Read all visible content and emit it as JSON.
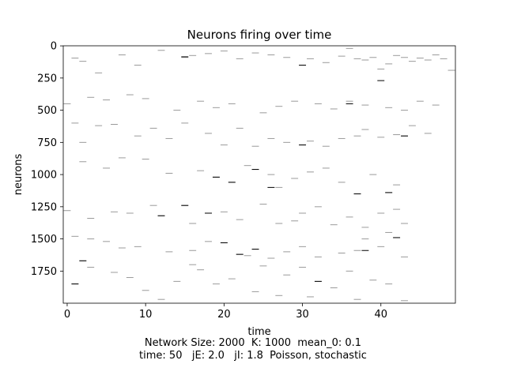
{
  "chart_data": {
    "type": "raster",
    "title": "Neurons firing over time",
    "xlabel": "time",
    "ylabel": "neurons",
    "xlim": [
      -0.5,
      49.5
    ],
    "ylim": [
      1999.5,
      -0.5
    ],
    "y_inverted": true,
    "xticks": [
      0,
      10,
      20,
      30,
      40
    ],
    "yticks": [
      0,
      250,
      500,
      750,
      1000,
      1250,
      1500,
      1750
    ],
    "grid": false,
    "colors": {
      "background": "#ffffff",
      "spike_light": "#9a9a9a",
      "spike_dark": "#000000"
    },
    "network_size": 2000,
    "time_steps": 50,
    "spikes": [
      [
        1,
        95
      ],
      [
        2,
        120
      ],
      [
        4,
        210
      ],
      [
        7,
        70
      ],
      [
        9,
        150
      ],
      [
        12,
        35
      ],
      [
        15,
        90
      ],
      [
        16,
        75
      ],
      [
        18,
        60
      ],
      [
        20,
        40
      ],
      [
        22,
        100
      ],
      [
        24,
        55
      ],
      [
        26,
        70
      ],
      [
        28,
        90
      ],
      [
        30,
        150
      ],
      [
        31,
        100
      ],
      [
        33,
        130
      ],
      [
        35,
        80
      ],
      [
        36,
        20
      ],
      [
        37,
        100
      ],
      [
        38,
        110
      ],
      [
        39,
        90
      ],
      [
        40,
        180
      ],
      [
        41,
        140
      ],
      [
        42,
        75
      ],
      [
        43,
        90
      ],
      [
        44,
        120
      ],
      [
        45,
        95
      ],
      [
        46,
        110
      ],
      [
        47,
        70
      ],
      [
        48,
        100
      ],
      [
        49,
        190
      ],
      [
        0,
        450
      ],
      [
        3,
        400
      ],
      [
        5,
        420
      ],
      [
        8,
        380
      ],
      [
        10,
        410
      ],
      [
        14,
        500
      ],
      [
        17,
        430
      ],
      [
        19,
        480
      ],
      [
        21,
        450
      ],
      [
        25,
        520
      ],
      [
        27,
        470
      ],
      [
        29,
        430
      ],
      [
        32,
        450
      ],
      [
        34,
        490
      ],
      [
        36,
        430
      ],
      [
        38,
        460
      ],
      [
        41,
        480
      ],
      [
        43,
        500
      ],
      [
        45,
        430
      ],
      [
        47,
        460
      ],
      [
        1,
        600
      ],
      [
        2,
        750
      ],
      [
        4,
        620
      ],
      [
        6,
        610
      ],
      [
        9,
        700
      ],
      [
        11,
        640
      ],
      [
        13,
        720
      ],
      [
        15,
        600
      ],
      [
        18,
        680
      ],
      [
        20,
        770
      ],
      [
        22,
        640
      ],
      [
        24,
        780
      ],
      [
        26,
        720
      ],
      [
        28,
        750
      ],
      [
        30,
        770
      ],
      [
        31,
        740
      ],
      [
        33,
        780
      ],
      [
        35,
        720
      ],
      [
        37,
        700
      ],
      [
        38,
        650
      ],
      [
        40,
        710
      ],
      [
        42,
        690
      ],
      [
        43,
        700
      ],
      [
        44,
        620
      ],
      [
        46,
        680
      ],
      [
        2,
        900
      ],
      [
        5,
        950
      ],
      [
        7,
        870
      ],
      [
        10,
        880
      ],
      [
        13,
        990
      ],
      [
        17,
        970
      ],
      [
        19,
        1020
      ],
      [
        21,
        1060
      ],
      [
        23,
        930
      ],
      [
        24,
        960
      ],
      [
        26,
        1000
      ],
      [
        27,
        1100
      ],
      [
        29,
        1030
      ],
      [
        31,
        980
      ],
      [
        33,
        950
      ],
      [
        35,
        1060
      ],
      [
        37,
        1150
      ],
      [
        39,
        1000
      ],
      [
        41,
        1140
      ],
      [
        42,
        1080
      ],
      [
        0,
        1280
      ],
      [
        3,
        1340
      ],
      [
        6,
        1290
      ],
      [
        8,
        1300
      ],
      [
        11,
        1240
      ],
      [
        12,
        1320
      ],
      [
        15,
        1240
      ],
      [
        16,
        1380
      ],
      [
        18,
        1300
      ],
      [
        20,
        1290
      ],
      [
        22,
        1350
      ],
      [
        25,
        1230
      ],
      [
        27,
        1380
      ],
      [
        29,
        1360
      ],
      [
        30,
        1300
      ],
      [
        32,
        1250
      ],
      [
        34,
        1390
      ],
      [
        36,
        1330
      ],
      [
        38,
        1410
      ],
      [
        40,
        1300
      ],
      [
        42,
        1270
      ],
      [
        43,
        1380
      ],
      [
        1,
        1480
      ],
      [
        3,
        1500
      ],
      [
        5,
        1520
      ],
      [
        7,
        1570
      ],
      [
        9,
        1560
      ],
      [
        13,
        1600
      ],
      [
        16,
        1590
      ],
      [
        18,
        1520
      ],
      [
        20,
        1530
      ],
      [
        22,
        1620
      ],
      [
        24,
        1580
      ],
      [
        26,
        1650
      ],
      [
        28,
        1600
      ],
      [
        30,
        1560
      ],
      [
        32,
        1640
      ],
      [
        35,
        1610
      ],
      [
        37,
        1590
      ],
      [
        38,
        1500
      ],
      [
        40,
        1560
      ],
      [
        41,
        1450
      ],
      [
        42,
        1490
      ],
      [
        43,
        1640
      ],
      [
        1,
        1850
      ],
      [
        2,
        1670
      ],
      [
        3,
        1720
      ],
      [
        6,
        1760
      ],
      [
        8,
        1800
      ],
      [
        10,
        1900
      ],
      [
        12,
        1970
      ],
      [
        14,
        1830
      ],
      [
        16,
        1700
      ],
      [
        17,
        1740
      ],
      [
        19,
        1850
      ],
      [
        21,
        1810
      ],
      [
        23,
        1630
      ],
      [
        24,
        1910
      ],
      [
        25,
        1710
      ],
      [
        27,
        1940
      ],
      [
        28,
        1780
      ],
      [
        30,
        1720
      ],
      [
        31,
        1950
      ],
      [
        32,
        1830
      ],
      [
        34,
        1880
      ],
      [
        36,
        1750
      ],
      [
        37,
        1970
      ],
      [
        39,
        1820
      ],
      [
        41,
        1850
      ],
      [
        43,
        1980
      ]
    ],
    "dark_spikes": [
      [
        15,
        85
      ],
      [
        30,
        150
      ],
      [
        40,
        270
      ],
      [
        36,
        450
      ],
      [
        43,
        700
      ],
      [
        30,
        770
      ],
      [
        24,
        960
      ],
      [
        19,
        1020
      ],
      [
        21,
        1060
      ],
      [
        26,
        1100
      ],
      [
        37,
        1150
      ],
      [
        41,
        1140
      ],
      [
        12,
        1320
      ],
      [
        18,
        1300
      ],
      [
        15,
        1240
      ],
      [
        20,
        1530
      ],
      [
        24,
        1580
      ],
      [
        22,
        1620
      ],
      [
        38,
        1590
      ],
      [
        42,
        1490
      ],
      [
        2,
        1670
      ],
      [
        1,
        1850
      ],
      [
        32,
        1830
      ]
    ]
  },
  "caption": {
    "line1": "Network Size: 2000  K: 1000  mean_0: 0.1",
    "line2": "time: 50   jE: 2.0   jI: 1.8  Poisson, stochastic"
  }
}
